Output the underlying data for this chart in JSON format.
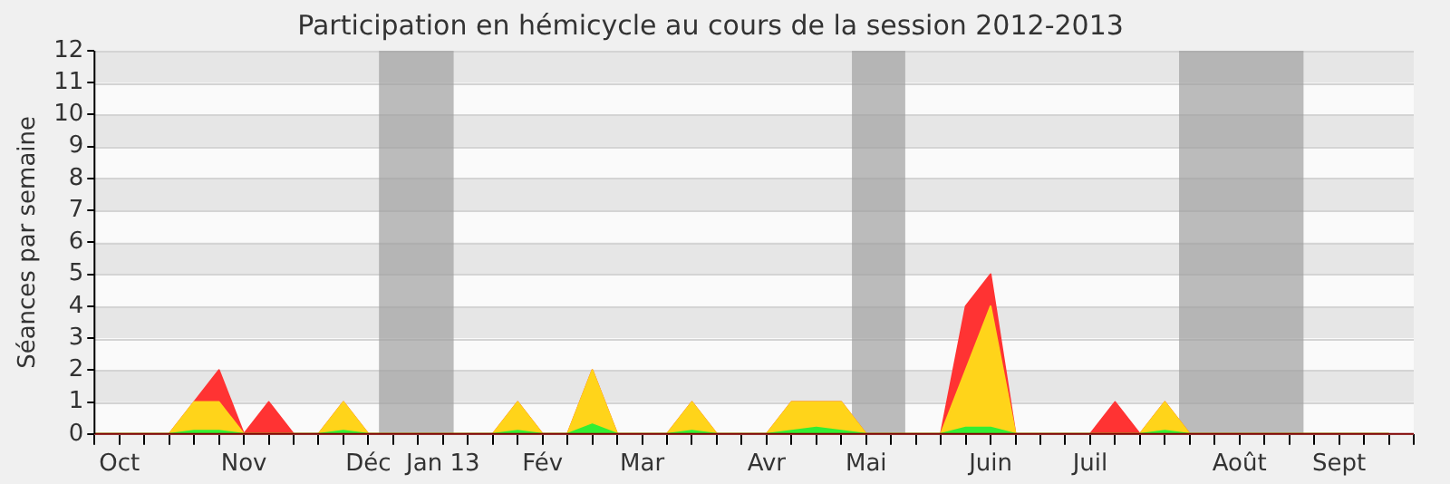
{
  "chart_data": {
    "type": "area",
    "title": "Participation en hémicycle au cours de la session 2012-2013",
    "ylabel": "Séances par semaine",
    "stacked": true,
    "x": [
      "2012-10-01",
      "2012-10-08",
      "2012-10-15",
      "2012-10-22",
      "2012-10-29",
      "2012-11-05",
      "2012-11-12",
      "2012-11-19",
      "2012-11-26",
      "2012-12-03",
      "2012-12-10",
      "2012-12-17",
      "2012-12-24",
      "2012-12-31",
      "2013-01-07",
      "2013-01-14",
      "2013-01-21",
      "2013-01-28",
      "2013-02-04",
      "2013-02-11",
      "2013-02-18",
      "2013-02-25",
      "2013-03-04",
      "2013-03-11",
      "2013-03-18",
      "2013-03-25",
      "2013-04-01",
      "2013-04-08",
      "2013-04-15",
      "2013-04-22",
      "2013-04-29",
      "2013-05-06",
      "2013-05-13",
      "2013-05-20",
      "2013-05-27",
      "2013-06-03",
      "2013-06-10",
      "2013-06-17",
      "2013-06-24",
      "2013-07-01",
      "2013-07-08",
      "2013-07-15",
      "2013-07-22",
      "2013-07-29",
      "2013-08-05",
      "2013-08-12",
      "2013-08-19",
      "2013-08-26",
      "2013-09-02",
      "2013-09-09",
      "2013-09-16",
      "2013-09-23",
      "2013-09-30"
    ],
    "series": [
      {
        "color": "#33ee33",
        "values": [
          0,
          0,
          0,
          0,
          0.1,
          0.1,
          0,
          0,
          0,
          0,
          0.1,
          0,
          0,
          0,
          0,
          0,
          0,
          0.1,
          0,
          0,
          0.3,
          0,
          0,
          0,
          0.1,
          0,
          0,
          0,
          0.1,
          0.2,
          0.1,
          0,
          0,
          0,
          0,
          0.2,
          0.2,
          0,
          0,
          0,
          0,
          0,
          0,
          0.1,
          0,
          0,
          0,
          0,
          0,
          0,
          0,
          0,
          0
        ]
      },
      {
        "color": "#ffd41a",
        "values": [
          0,
          0,
          0,
          0,
          0.9,
          0.9,
          0,
          0,
          0,
          0,
          0.9,
          0,
          0,
          0,
          0,
          0,
          0,
          0.9,
          0,
          0,
          1.7,
          0,
          0,
          0,
          0.9,
          0,
          0,
          0,
          0.9,
          0.8,
          0.9,
          0,
          0,
          0,
          0,
          1.8,
          3.8,
          0,
          0,
          0,
          0,
          0,
          0,
          0.9,
          0,
          0,
          0,
          0,
          0,
          0,
          0,
          0,
          0
        ]
      },
      {
        "color": "#ff3333",
        "values": [
          0,
          0,
          0,
          0,
          0,
          1,
          0,
          1,
          0,
          0,
          0,
          0,
          0,
          0,
          0,
          0,
          0,
          0,
          0,
          0,
          0,
          0,
          0,
          0,
          0,
          0,
          0,
          0,
          0,
          0,
          0,
          0,
          0,
          0,
          0,
          2,
          1,
          0,
          0,
          0,
          0,
          1,
          0,
          0,
          0,
          0,
          0,
          0,
          0,
          0,
          0,
          0,
          0
        ]
      }
    ],
    "xlim": [
      "2012-10-01",
      "2013-10-07"
    ],
    "xticks": [
      {
        "value": "2012-10-01",
        "label": null
      },
      {
        "value": "2012-10-08",
        "label": "Oct"
      },
      {
        "value": "2012-10-15",
        "label": null
      },
      {
        "value": "2012-10-22",
        "label": null
      },
      {
        "value": "2012-10-29",
        "label": null
      },
      {
        "value": "2012-11-05",
        "label": null
      },
      {
        "value": "2012-11-12",
        "label": "Nov"
      },
      {
        "value": "2012-11-19",
        "label": null
      },
      {
        "value": "2012-11-26",
        "label": null
      },
      {
        "value": "2012-12-03",
        "label": null
      },
      {
        "value": "2012-12-10",
        "label": null
      },
      {
        "value": "2012-12-17",
        "label": "Déc"
      },
      {
        "value": "2012-12-24",
        "label": null
      },
      {
        "value": "2012-12-31",
        "label": null
      },
      {
        "value": "2013-01-07",
        "label": "Jan 13"
      },
      {
        "value": "2013-01-14",
        "label": null
      },
      {
        "value": "2013-01-21",
        "label": null
      },
      {
        "value": "2013-01-28",
        "label": null
      },
      {
        "value": "2013-02-04",
        "label": "Fév"
      },
      {
        "value": "2013-02-11",
        "label": null
      },
      {
        "value": "2013-02-18",
        "label": null
      },
      {
        "value": "2013-02-25",
        "label": null
      },
      {
        "value": "2013-03-04",
        "label": "Mar"
      },
      {
        "value": "2013-03-11",
        "label": null
      },
      {
        "value": "2013-03-18",
        "label": null
      },
      {
        "value": "2013-03-25",
        "label": null
      },
      {
        "value": "2013-04-01",
        "label": null
      },
      {
        "value": "2013-04-08",
        "label": "Avr"
      },
      {
        "value": "2013-04-15",
        "label": null
      },
      {
        "value": "2013-04-22",
        "label": null
      },
      {
        "value": "2013-04-29",
        "label": null
      },
      {
        "value": "2013-05-06",
        "label": "Mai"
      },
      {
        "value": "2013-05-13",
        "label": null
      },
      {
        "value": "2013-05-20",
        "label": null
      },
      {
        "value": "2013-05-27",
        "label": null
      },
      {
        "value": "2013-06-03",
        "label": null
      },
      {
        "value": "2013-06-10",
        "label": "Juin"
      },
      {
        "value": "2013-06-17",
        "label": null
      },
      {
        "value": "2013-06-24",
        "label": null
      },
      {
        "value": "2013-07-01",
        "label": null
      },
      {
        "value": "2013-07-08",
        "label": "Juil"
      },
      {
        "value": "2013-07-15",
        "label": null
      },
      {
        "value": "2013-07-22",
        "label": null
      },
      {
        "value": "2013-07-29",
        "label": null
      },
      {
        "value": "2013-08-05",
        "label": null
      },
      {
        "value": "2013-08-12",
        "label": null
      },
      {
        "value": "2013-08-19",
        "label": "Août"
      },
      {
        "value": "2013-08-26",
        "label": null
      },
      {
        "value": "2013-09-02",
        "label": null
      },
      {
        "value": "2013-09-09",
        "label": null
      },
      {
        "value": "2013-09-16",
        "label": "Sept"
      },
      {
        "value": "2013-09-23",
        "label": null
      },
      {
        "value": "2013-09-30",
        "label": null
      },
      {
        "value": "2013-10-07",
        "label": null
      }
    ],
    "ylim": [
      0,
      12
    ],
    "yticks": [
      0,
      1,
      2,
      3,
      4,
      5,
      6,
      7,
      8,
      9,
      10,
      11,
      12
    ],
    "grid": "y",
    "bands": [
      {
        "axis": "x",
        "from": "2012-12-20",
        "to": "2013-01-10",
        "color": "#a0a0a0"
      },
      {
        "axis": "x",
        "from": "2013-05-02",
        "to": "2013-05-17",
        "color": "#a0a0a0"
      },
      {
        "axis": "x",
        "from": "2013-08-02",
        "to": "2013-09-06",
        "color": "#a0a0a0"
      }
    ]
  }
}
